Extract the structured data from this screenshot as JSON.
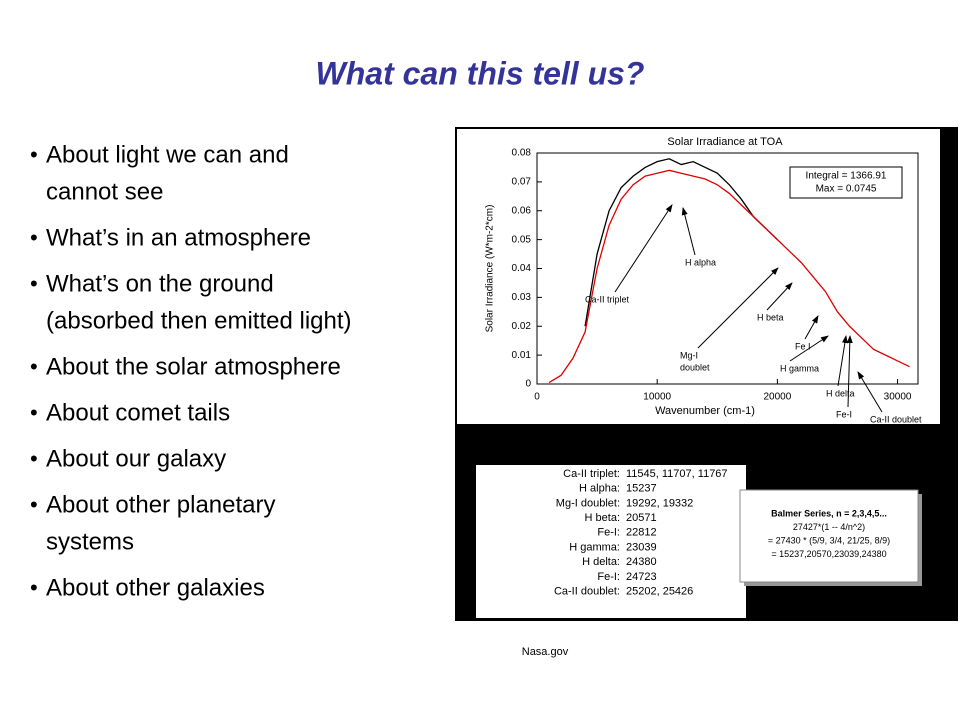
{
  "title": "What can this tell us?",
  "bullets": [
    [
      "About light we can and",
      "cannot see"
    ],
    [
      "What’s in an atmosphere"
    ],
    [
      "What’s on the ground",
      "(absorbed then emitted light)"
    ],
    [
      "About the solar atmosphere"
    ],
    [
      "About comet tails"
    ],
    [
      "About our galaxy"
    ],
    [
      "About other planetary",
      "systems"
    ],
    [
      "About other galaxies"
    ]
  ],
  "credit": "Nasa.gov",
  "chart_data": {
    "type": "line",
    "title": "Solar Irradiance at TOA",
    "x_label": "Wavenumber (cm-1)",
    "y_label": "Solar Irradiance (W*m-2*cm)",
    "x": [
      1000,
      2000,
      3000,
      4000,
      5000,
      6000,
      7000,
      8000,
      9000,
      10000,
      11000,
      12000,
      13000,
      14000,
      15000,
      16000,
      17000,
      18000,
      19000,
      20000,
      21000,
      22000,
      23000,
      24000,
      25000,
      26000,
      27000,
      28000,
      29000,
      30000,
      31000
    ],
    "series": [
      {
        "color": "#000000",
        "values": [
          null,
          null,
          null,
          0.02,
          0.045,
          0.06,
          0.068,
          0.072,
          0.075,
          0.077,
          0.078,
          0.076,
          0.077,
          0.075,
          0.073,
          0.069,
          0.064,
          0.058,
          0.054,
          0.05,
          null,
          null,
          null,
          null,
          null,
          null,
          null,
          null,
          null,
          null,
          null
        ]
      },
      {
        "color": "#e00000",
        "values": [
          0.0005,
          0.003,
          0.009,
          0.018,
          0.04,
          0.055,
          0.064,
          0.069,
          0.072,
          0.073,
          0.074,
          0.073,
          0.072,
          0.071,
          0.069,
          0.066,
          0.062,
          0.058,
          0.054,
          0.05,
          0.046,
          0.042,
          0.037,
          0.032,
          0.025,
          0.02,
          0.016,
          0.012,
          0.01,
          0.008,
          0.006
        ]
      }
    ],
    "xlim": [
      0,
      31700
    ],
    "ylim": [
      0,
      0.08
    ],
    "xticks": [
      0,
      10000,
      20000,
      30000
    ],
    "yticks": [
      0,
      0.01,
      0.02,
      0.03,
      0.04,
      0.05,
      0.06,
      0.07,
      0.08
    ],
    "info": [
      "Integral = 1366.91",
      "Max = 0.0745"
    ],
    "annotations": [
      "Ca-II triplet",
      "H alpha",
      "H beta",
      "Fe I",
      "Mg-I",
      "doublet",
      "H gamma",
      "H delta",
      "Fe-I",
      "Ca-II doublet"
    ]
  },
  "table": {
    "rows": [
      [
        "Ca-II triplet:",
        "11545, 11707, 11767"
      ],
      [
        "H alpha:",
        "15237"
      ],
      [
        "Mg-I doublet:",
        "19292, 19332"
      ],
      [
        "H beta:",
        "20571"
      ],
      [
        "Fe-I:",
        "22812"
      ],
      [
        "H gamma:",
        "23039"
      ],
      [
        "H delta:",
        "24380"
      ],
      [
        "Fe-I:",
        "24723"
      ],
      [
        "Ca-II doublet:",
        "25202, 25426"
      ]
    ]
  },
  "balmer": [
    "Balmer  Series, n = 2,3,4,5...",
    "27427*(1 -- 4/n^2)",
    "= 27430 * (5/9, 3/4, 21/25, 8/9)",
    "=  15237,20570,23039,24380"
  ]
}
